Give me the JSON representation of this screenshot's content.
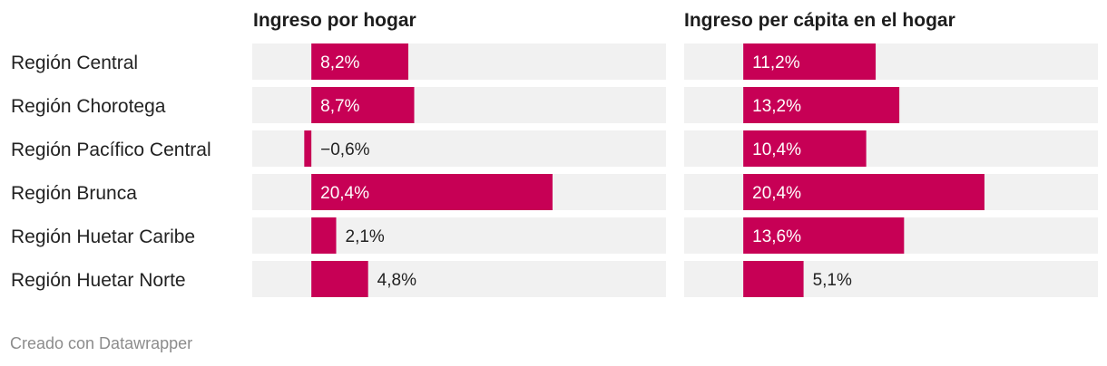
{
  "footer_text": "Creado con Datawrapper",
  "colors": {
    "bar": "#c70055",
    "background_band": "#f1f1f1",
    "label_on_bar": "#ffffff",
    "label_off_bar": "#222222"
  },
  "chart_data": {
    "type": "bar",
    "orientation": "horizontal",
    "categories": [
      "Región Central",
      "Región Chorotega",
      "Región Pacífico Central",
      "Región Brunca",
      "Región Huetar Caribe",
      "Región Huetar Norte"
    ],
    "panels": [
      {
        "title": "Ingreso por hogar",
        "values": [
          8.2,
          8.7,
          -0.6,
          20.4,
          2.1,
          4.8
        ],
        "labels": [
          "8,2%",
          "8,7%",
          "−0,6%",
          "20,4%",
          "2,1%",
          "4,8%"
        ]
      },
      {
        "title": "Ingreso per cápita en el hogar",
        "values": [
          11.2,
          13.2,
          10.4,
          20.4,
          13.6,
          5.1
        ],
        "labels": [
          "11,2%",
          "13,2%",
          "10,4%",
          "20,4%",
          "13,6%",
          "5,1%"
        ]
      }
    ],
    "xlim": [
      -5,
      30
    ],
    "grid": false,
    "legend": "none"
  }
}
